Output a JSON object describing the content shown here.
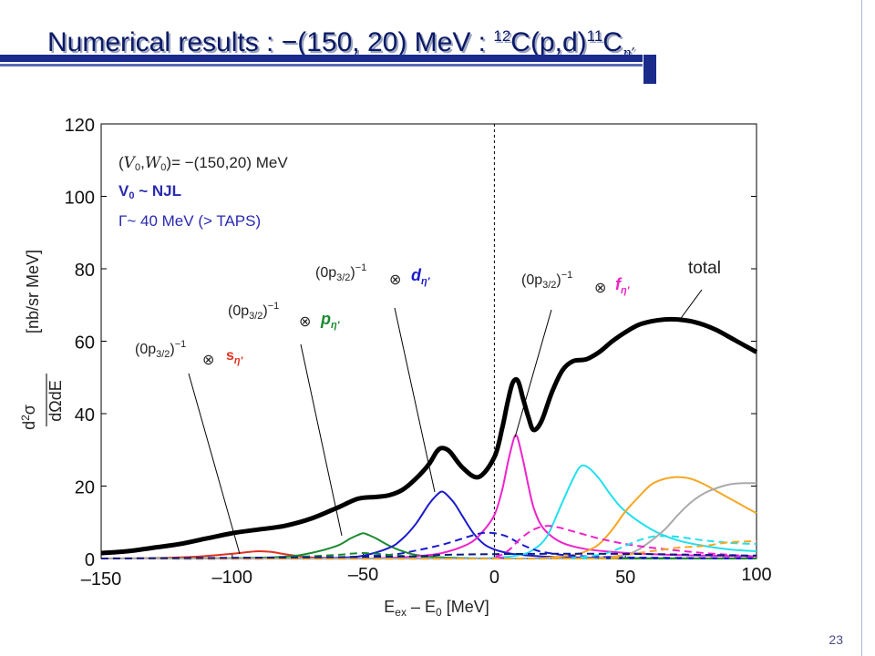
{
  "slide": {
    "title_main": "Numerical results :  −(150, 20) MeV : ",
    "title_A1": "12",
    "title_X1": "C(p,d)",
    "title_A2": "11",
    "title_X2": "C",
    "title_sub": "η’",
    "page_number": "23"
  },
  "chart_data": {
    "type": "line",
    "xlim": [
      -150,
      100
    ],
    "ylim": [
      0,
      120
    ],
    "x_ticks": [
      "–150",
      "–100",
      "–50",
      "0",
      "50",
      "100"
    ],
    "y_ticks": [
      "0",
      "20",
      "40",
      "60",
      "80",
      "100",
      "120"
    ],
    "xlabel": "E_ex – E_0 [MeV]",
    "ylabel": "d²σ / dΩdE [nb/sr MeV]",
    "annotations": {
      "params_line1": "(V0,W0)= −(150,20) MeV",
      "params_line2": "V0 ~ NJL",
      "params_line3": "Γ~ 40 MeV (> TAPS)",
      "label_s": "(0p3/2)−1 ⊗ sη′",
      "label_p": "(0p3/2)−1 ⊗ pη′",
      "label_d": "(0p3/2)−1 ⊗ dη′",
      "label_f": "(0p3/2)−1 ⊗ fη′",
      "label_total": "total"
    },
    "colors": {
      "total": "#000000",
      "s": "#e03020",
      "p": "#1a8a30",
      "d": "#1a1acc",
      "f": "#ee22cc",
      "g": "#22e0ee",
      "h": "#f5a623",
      "i": "#aaaaaa",
      "dashed_extra": "#0a1a88"
    },
    "series": [
      {
        "key": "total",
        "style": "solid",
        "width": 5,
        "x": [
          -150,
          -140,
          -130,
          -120,
          -110,
          -100,
          -90,
          -80,
          -70,
          -60,
          -52,
          -45,
          -40,
          -35,
          -30,
          -25,
          -22,
          -20,
          -17,
          -12,
          -6,
          0,
          3,
          5,
          7,
          9,
          11,
          13,
          15,
          18,
          22,
          26,
          30,
          35,
          40,
          45,
          50,
          55,
          60,
          65,
          70,
          75,
          80,
          85,
          90,
          95,
          100
        ],
        "y": [
          1.5,
          2,
          3,
          4,
          5.5,
          7,
          8,
          9,
          11,
          14,
          16.5,
          17,
          17.5,
          19,
          22,
          26,
          29.5,
          30.5,
          29.5,
          25,
          22.5,
          28,
          36,
          43,
          48.5,
          49,
          44,
          39,
          35.5,
          38,
          46,
          52,
          54.5,
          55,
          57,
          60,
          62.5,
          64.5,
          65.5,
          66,
          66,
          65.5,
          64.5,
          63,
          61,
          59,
          57
        ]
      },
      {
        "key": "s",
        "style": "solid",
        "width": 2,
        "x": [
          -150,
          -130,
          -120,
          -110,
          -100,
          -95,
          -90,
          -85,
          -80,
          -75,
          -70,
          -60,
          -50,
          -30,
          0,
          50,
          100
        ],
        "y": [
          0,
          0.1,
          0.3,
          0.7,
          1.3,
          1.7,
          2.0,
          1.8,
          1.2,
          0.7,
          0.3,
          0.1,
          0,
          0,
          0,
          0,
          0
        ]
      },
      {
        "key": "p",
        "style": "solid",
        "width": 2,
        "x": [
          -150,
          -100,
          -80,
          -70,
          -60,
          -55,
          -52,
          -50,
          -48,
          -45,
          -40,
          -35,
          -30,
          -20,
          -10,
          0,
          20,
          50,
          100
        ],
        "y": [
          0,
          0.1,
          0.5,
          1.5,
          3.5,
          5.5,
          6.5,
          7,
          6.5,
          5.5,
          3.5,
          2.0,
          1.0,
          0.3,
          0.1,
          0,
          0,
          0,
          0
        ]
      },
      {
        "key": "d",
        "style": "solid",
        "width": 2,
        "x": [
          -150,
          -80,
          -60,
          -50,
          -40,
          -35,
          -30,
          -25,
          -22,
          -20,
          -18,
          -15,
          -12,
          -8,
          -4,
          0,
          5,
          10,
          20,
          30,
          50,
          100
        ],
        "y": [
          0,
          0,
          0.2,
          0.8,
          3,
          5.5,
          9.5,
          15,
          17.5,
          18.5,
          17.5,
          15,
          11.5,
          7,
          4,
          2.5,
          1.5,
          1,
          0.5,
          0.3,
          0.1,
          0
        ]
      },
      {
        "key": "f",
        "style": "solid",
        "width": 2,
        "x": [
          -150,
          -60,
          -40,
          -30,
          -20,
          -10,
          -5,
          0,
          3,
          5,
          7,
          8,
          9,
          11,
          13,
          15,
          18,
          22,
          27,
          35,
          45,
          60,
          80,
          100
        ],
        "y": [
          0,
          0,
          0.2,
          0.6,
          1.5,
          4,
          7,
          12,
          19,
          26,
          32,
          34,
          33,
          27,
          20,
          14,
          9,
          6,
          4,
          2.6,
          1.8,
          1.2,
          0.8,
          0.6
        ]
      },
      {
        "key": "g",
        "style": "solid",
        "width": 2,
        "x": [
          -150,
          -20,
          0,
          10,
          15,
          20,
          25,
          30,
          33,
          36,
          40,
          45,
          50,
          60,
          70,
          80,
          90,
          100
        ],
        "y": [
          0,
          0,
          0.2,
          1,
          2.5,
          6,
          14,
          22,
          25.5,
          25,
          22,
          17,
          13,
          8,
          5,
          3.5,
          2.5,
          2
        ]
      },
      {
        "key": "h",
        "style": "solid",
        "width": 2,
        "x": [
          -150,
          0,
          20,
          30,
          35,
          40,
          45,
          50,
          55,
          60,
          65,
          70,
          75,
          80,
          85,
          90,
          95,
          100
        ],
        "y": [
          0,
          0,
          0.2,
          1,
          2,
          4,
          8,
          13,
          17,
          20.5,
          22,
          22.5,
          22,
          20.5,
          18.5,
          16.5,
          14.5,
          12.5
        ]
      },
      {
        "key": "i",
        "style": "solid",
        "width": 2,
        "x": [
          -150,
          20,
          40,
          50,
          55,
          60,
          65,
          70,
          75,
          80,
          85,
          90,
          95,
          100
        ],
        "y": [
          0,
          0,
          0.3,
          1,
          2.5,
          5,
          8,
          12,
          15.5,
          18,
          19.5,
          20.5,
          20.8,
          20.8
        ]
      },
      {
        "key": "d",
        "style": "dashed",
        "width": 2,
        "x": [
          -150,
          -80,
          -60,
          -40,
          -30,
          -20,
          -10,
          -5,
          0,
          5,
          10,
          15,
          20,
          30,
          50,
          100
        ],
        "y": [
          0,
          0,
          0.3,
          1,
          2.2,
          3.8,
          6,
          7,
          7,
          6,
          4,
          2.5,
          1.6,
          0.8,
          0.3,
          0.1
        ]
      },
      {
        "key": "f",
        "style": "dashed",
        "width": 2,
        "x": [
          -150,
          -10,
          0,
          5,
          10,
          15,
          20,
          25,
          30,
          35,
          40,
          50,
          60,
          70,
          80,
          90,
          100
        ],
        "y": [
          0,
          0,
          0.5,
          2,
          5.5,
          8,
          9,
          8.5,
          7.5,
          6.5,
          5.5,
          4,
          3,
          2.2,
          1.5,
          1,
          0.6
        ]
      },
      {
        "key": "p",
        "style": "dashed",
        "width": 2,
        "x": [
          -150,
          -100,
          -80,
          -60,
          -55,
          -50,
          -45,
          -40,
          -30,
          -20,
          -10,
          0,
          20,
          50,
          100
        ],
        "y": [
          0,
          0,
          0.3,
          1,
          1.3,
          1.5,
          1.3,
          1,
          0.5,
          0.2,
          0,
          0,
          0,
          0,
          0
        ]
      },
      {
        "key": "g",
        "style": "dashed",
        "width": 2,
        "x": [
          -150,
          20,
          30,
          40,
          45,
          50,
          55,
          60,
          65,
          70,
          75,
          80,
          90,
          100
        ],
        "y": [
          0,
          0,
          0.2,
          1,
          2,
          3.5,
          5,
          6,
          6.2,
          6,
          5.5,
          5,
          4.3,
          4
        ]
      },
      {
        "key": "h",
        "style": "dashed",
        "width": 2,
        "x": [
          -150,
          30,
          45,
          55,
          60,
          65,
          70,
          80,
          90,
          100
        ],
        "y": [
          0,
          0,
          0.5,
          1.5,
          2,
          2.5,
          3,
          3.5,
          4.5,
          4.8
        ]
      },
      {
        "key": "dashed_extra",
        "style": "dashed",
        "width": 2,
        "x": [
          -150,
          -40,
          -20,
          0,
          20,
          40,
          60,
          80,
          100
        ],
        "y": [
          0,
          0.5,
          1,
          1.2,
          1.3,
          1.3,
          1.2,
          1.0,
          0.8
        ]
      }
    ]
  }
}
